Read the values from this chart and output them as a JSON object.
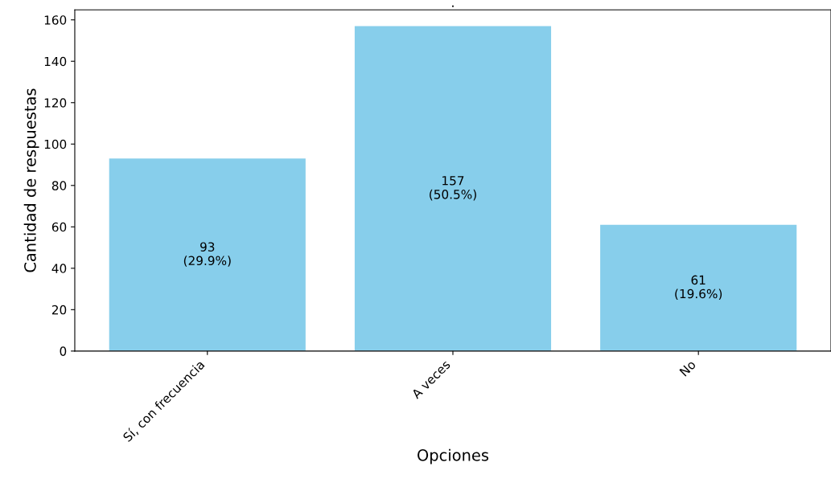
{
  "chart_data": {
    "type": "bar",
    "title": ".",
    "xlabel": "Opciones",
    "ylabel": "Cantidad de respuestas",
    "categories": [
      "Sí, con frecuencia",
      "A veces",
      "No"
    ],
    "values": [
      93,
      157,
      61
    ],
    "value_labels": [
      "93\n(29.9%)",
      "157\n(50.5%)",
      "61\n(19.6%)"
    ],
    "color": "#87ceeb",
    "ylim": [
      0,
      164.85
    ],
    "yticks": [
      0,
      20,
      40,
      60,
      80,
      100,
      120,
      140,
      160
    ],
    "grid": false,
    "legend": false
  }
}
